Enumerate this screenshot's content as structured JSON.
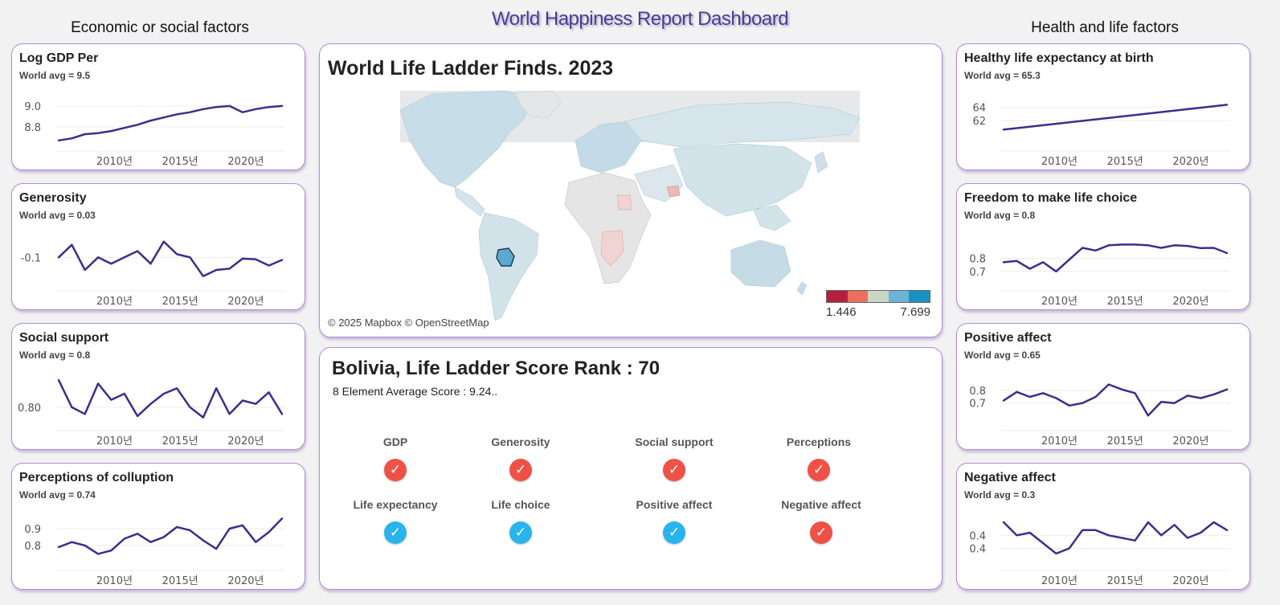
{
  "title": "World Happiness Report Dashboard",
  "left_title": "Economic or social factors",
  "right_title": "Health and life factors",
  "line_color": "#3d2d8c",
  "charts": {
    "gdp": {
      "title": "Log GDP Per",
      "subtitle": "World avg = 9.5",
      "x_labels": [
        "2010년",
        "2015년",
        "2020년"
      ],
      "y_labels": [
        "9.0",
        "8.8"
      ],
      "y_ticks": [
        9.0,
        8.8
      ],
      "chart_data": {
        "type": "line",
        "x": [
          2006,
          2007,
          2008,
          2009,
          2010,
          2011,
          2012,
          2013,
          2014,
          2015,
          2016,
          2017,
          2018,
          2019,
          2020,
          2021,
          2022,
          2023
        ],
        "y": [
          8.67,
          8.69,
          8.73,
          8.74,
          8.76,
          8.79,
          8.82,
          8.86,
          8.89,
          8.92,
          8.94,
          8.97,
          8.99,
          9.0,
          8.94,
          8.97,
          8.99,
          9.0
        ],
        "ylim": [
          8.63,
          9.13
        ]
      }
    },
    "generosity": {
      "title": "Generosity",
      "subtitle": "World avg = 0.03",
      "x_labels": [
        "2010년",
        "2015년",
        "2020년"
      ],
      "y_labels": [
        "-0.1"
      ],
      "y_ticks": [
        -0.1
      ],
      "chart_data": {
        "type": "line",
        "x": [
          2006,
          2007,
          2008,
          2009,
          2010,
          2011,
          2012,
          2013,
          2014,
          2015,
          2016,
          2017,
          2018,
          2019,
          2020,
          2021,
          2022,
          2023
        ],
        "y": [
          -0.1,
          -0.08,
          -0.12,
          -0.1,
          -0.11,
          -0.1,
          -0.09,
          -0.11,
          -0.075,
          -0.095,
          -0.1,
          -0.13,
          -0.12,
          -0.118,
          -0.102,
          -0.103,
          -0.113,
          -0.104
        ],
        "ylim": [
          -0.143,
          -0.06
        ]
      }
    },
    "social": {
      "title": "Social support",
      "subtitle": "World avg = 0.8",
      "x_labels": [
        "2010년",
        "2015년",
        "2020년"
      ],
      "y_labels": [
        "0.80"
      ],
      "y_ticks": [
        0.8
      ],
      "chart_data": {
        "type": "line",
        "x": [
          2006,
          2007,
          2008,
          2009,
          2010,
          2011,
          2012,
          2013,
          2014,
          2015,
          2016,
          2017,
          2018,
          2019,
          2020,
          2021,
          2022,
          2023
        ],
        "y": [
          0.84,
          0.8,
          0.79,
          0.835,
          0.811,
          0.82,
          0.787,
          0.805,
          0.82,
          0.828,
          0.8,
          0.785,
          0.828,
          0.79,
          0.81,
          0.805,
          0.822,
          0.79
        ],
        "ylim": [
          0.775,
          0.852
        ]
      }
    },
    "corruption": {
      "title": "Perceptions of colluption",
      "subtitle": "World avg = 0.74",
      "x_labels": [
        "2010년",
        "2015년",
        "2020년"
      ],
      "y_labels": [
        "0.9",
        "0.8"
      ],
      "y_ticks": [
        0.9,
        0.8
      ],
      "chart_data": {
        "type": "line",
        "x": [
          2006,
          2007,
          2008,
          2009,
          2010,
          2011,
          2012,
          2013,
          2014,
          2015,
          2016,
          2017,
          2018,
          2019,
          2020,
          2021,
          2022,
          2023
        ],
        "y": [
          0.79,
          0.82,
          0.8,
          0.75,
          0.77,
          0.84,
          0.87,
          0.82,
          0.85,
          0.91,
          0.89,
          0.83,
          0.78,
          0.9,
          0.92,
          0.82,
          0.88,
          0.96
        ],
        "ylim": [
          0.69,
          1.0
        ]
      }
    },
    "health": {
      "title": "Healthy life expectancy at birth",
      "subtitle": "World avg = 65.3",
      "x_labels": [
        "2010년",
        "2015년",
        "2020년"
      ],
      "y_labels": [
        "64",
        "62"
      ],
      "y_ticks": [
        64,
        62
      ],
      "chart_data": {
        "type": "line",
        "x": [
          2006,
          2023
        ],
        "y": [
          60.6,
          64.4
        ],
        "ylim": [
          58.3,
          66.3
        ]
      }
    },
    "freedom": {
      "title": "Freedom to make life choice",
      "subtitle": "World avg = 0.8",
      "x_labels": [
        "2010년",
        "2015년",
        "2020년"
      ],
      "y_labels": [
        "0.8",
        "0.7"
      ],
      "y_ticks": [
        0.8,
        0.7
      ],
      "chart_data": {
        "type": "line",
        "x": [
          2006,
          2007,
          2008,
          2009,
          2010,
          2011,
          2012,
          2013,
          2014,
          2015,
          2016,
          2017,
          2018,
          2019,
          2020,
          2021,
          2022,
          2023
        ],
        "y": [
          0.77,
          0.78,
          0.72,
          0.77,
          0.7,
          0.79,
          0.88,
          0.86,
          0.9,
          0.905,
          0.905,
          0.9,
          0.88,
          0.9,
          0.895,
          0.878,
          0.88,
          0.84
        ],
        "ylim": [
          0.6,
          1.0
        ]
      }
    },
    "positive": {
      "title": "Positive affect",
      "subtitle": "World avg = 0.65",
      "x_labels": [
        "2010년",
        "2015년",
        "2020년"
      ],
      "y_labels": [
        "0.8",
        "0.7"
      ],
      "y_ticks": [
        0.8,
        0.7
      ],
      "chart_data": {
        "type": "line",
        "x": [
          2006,
          2007,
          2008,
          2009,
          2010,
          2011,
          2012,
          2013,
          2014,
          2015,
          2016,
          2017,
          2018,
          2019,
          2020,
          2021,
          2022,
          2023
        ],
        "y": [
          0.72,
          0.79,
          0.75,
          0.78,
          0.74,
          0.68,
          0.7,
          0.75,
          0.85,
          0.81,
          0.78,
          0.6,
          0.71,
          0.7,
          0.76,
          0.74,
          0.77,
          0.81
        ],
        "ylim": [
          0.53,
          0.95
        ]
      }
    },
    "negative": {
      "title": "Negative affect",
      "subtitle": "World avg = 0.3",
      "x_labels": [
        "2010년",
        "2015년",
        "2020년"
      ],
      "y_labels": [
        "0.4",
        "0.4"
      ],
      "y_ticks": [
        0.4,
        0.35
      ],
      "chart_data": {
        "type": "line",
        "x": [
          2006,
          2007,
          2008,
          2009,
          2010,
          2011,
          2012,
          2013,
          2014,
          2015,
          2016,
          2017,
          2018,
          2019,
          2020,
          2021,
          2022,
          2023
        ],
        "y": [
          0.45,
          0.4,
          0.41,
          0.37,
          0.33,
          0.35,
          0.42,
          0.42,
          0.4,
          0.39,
          0.38,
          0.45,
          0.4,
          0.44,
          0.39,
          0.41,
          0.45,
          0.42
        ],
        "ylim": [
          0.29,
          0.49
        ]
      }
    }
  },
  "map": {
    "title": "World Life Ladder Finds. 2023",
    "attribution": "© 2025 Mapbox © OpenStreetMap",
    "legend_min": "1.446",
    "legend_max": "7.699",
    "legend_colors": [
      "#b51f3c",
      "#ec6e5f",
      "#c7d6c6",
      "#6ab4d6",
      "#1a91c5"
    ]
  },
  "rank": {
    "title": "Bolivia, Life Ladder Score Rank : 70",
    "subtitle": "8 Element Average Score : 9.24..",
    "factors": [
      {
        "label": "GDP",
        "status": "red"
      },
      {
        "label": "Generosity",
        "status": "red"
      },
      {
        "label": "Social support",
        "status": "red"
      },
      {
        "label": "Perceptions",
        "status": "red"
      },
      {
        "label": "Life expectancy",
        "status": "blue"
      },
      {
        "label": "Life choice",
        "status": "blue"
      },
      {
        "label": "Positive affect",
        "status": "blue"
      },
      {
        "label": "Negative affect",
        "status": "red"
      }
    ]
  }
}
